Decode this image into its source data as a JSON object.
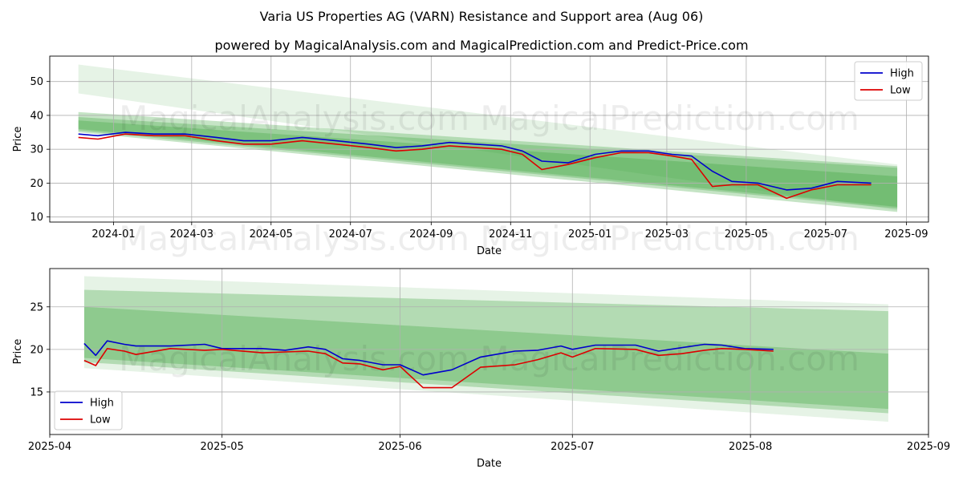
{
  "title": "Varia US Properties AG (VARN) Resistance and Support area (Aug 06)",
  "subtitle": "powered by MagicalAnalysis.com and MagicalPrediction.com and Predict-Price.com",
  "watermark": "MagicalAnalysis.com    MagicalPrediction.com",
  "colors": {
    "high": "#0000cc",
    "low": "#dd0000",
    "band": "#2e9e2e",
    "grid": "#b0b0b0"
  },
  "chart_data": [
    {
      "type": "line",
      "xlabel": "Date",
      "ylabel": "Price",
      "xlim": [
        "2023-11-13",
        "2025-09-18"
      ],
      "ylim": [
        8.5,
        57.5
      ],
      "xticks": [
        "2024-01",
        "2024-03",
        "2024-05",
        "2024-07",
        "2024-09",
        "2024-11",
        "2025-01",
        "2025-03",
        "2025-05",
        "2025-07",
        "2025-09"
      ],
      "yticks": [
        10,
        20,
        30,
        40,
        50
      ],
      "grid": true,
      "legend": "top-right",
      "series": [
        {
          "name": "High",
          "x": [
            "2023-12-05",
            "2023-12-20",
            "2024-01-10",
            "2024-02-01",
            "2024-02-25",
            "2024-03-20",
            "2024-04-10",
            "2024-05-01",
            "2024-05-25",
            "2024-06-20",
            "2024-07-15",
            "2024-08-05",
            "2024-08-25",
            "2024-09-15",
            "2024-10-05",
            "2024-10-25",
            "2024-11-10",
            "2024-11-25",
            "2024-12-15",
            "2025-01-05",
            "2025-01-25",
            "2025-02-15",
            "2025-03-05",
            "2025-03-20",
            "2025-04-05",
            "2025-04-20",
            "2025-05-10",
            "2025-06-01",
            "2025-06-20",
            "2025-07-10",
            "2025-08-05"
          ],
          "values": [
            34.5,
            34.0,
            35.0,
            34.5,
            34.5,
            33.5,
            32.5,
            32.5,
            33.5,
            32.5,
            31.5,
            30.5,
            31.0,
            32.0,
            31.5,
            31.0,
            29.5,
            26.5,
            26.0,
            28.5,
            29.5,
            29.5,
            28.5,
            28.0,
            23.5,
            20.5,
            20.0,
            18.0,
            18.5,
            20.5,
            20.0
          ]
        },
        {
          "name": "Low",
          "x": [
            "2023-12-05",
            "2023-12-20",
            "2024-01-10",
            "2024-02-01",
            "2024-02-25",
            "2024-03-20",
            "2024-04-10",
            "2024-05-01",
            "2024-05-25",
            "2024-06-20",
            "2024-07-15",
            "2024-08-05",
            "2024-08-25",
            "2024-09-15",
            "2024-10-05",
            "2024-10-25",
            "2024-11-10",
            "2024-11-25",
            "2024-12-15",
            "2025-01-05",
            "2025-01-25",
            "2025-02-15",
            "2025-03-05",
            "2025-03-20",
            "2025-04-05",
            "2025-04-20",
            "2025-05-10",
            "2025-06-01",
            "2025-06-20",
            "2025-07-10",
            "2025-08-05"
          ],
          "values": [
            33.5,
            33.0,
            34.5,
            34.0,
            34.0,
            32.5,
            31.5,
            31.5,
            32.5,
            31.5,
            30.5,
            29.5,
            30.0,
            31.0,
            30.5,
            30.0,
            28.5,
            24.0,
            25.5,
            27.5,
            29.0,
            29.0,
            28.0,
            27.0,
            19.0,
            19.5,
            19.5,
            15.5,
            18.0,
            19.5,
            19.5
          ]
        }
      ],
      "bands": [
        {
          "x": [
            "2023-12-05",
            "2025-08-25"
          ],
          "upper": [
            55.0,
            25.5
          ],
          "lower": [
            46.5,
            12.0
          ]
        },
        {
          "x": [
            "2023-12-05",
            "2025-08-25"
          ],
          "upper": [
            41.0,
            25.0
          ],
          "lower": [
            35.0,
            11.5
          ]
        },
        {
          "x": [
            "2023-12-05",
            "2025-08-25"
          ],
          "upper": [
            39.5,
            24.5
          ],
          "lower": [
            35.5,
            12.5
          ]
        },
        {
          "x": [
            "2023-12-05",
            "2025-08-25"
          ],
          "upper": [
            38.5,
            22.0
          ],
          "lower": [
            36.0,
            13.0
          ]
        }
      ]
    },
    {
      "type": "line",
      "xlabel": "Date",
      "ylabel": "Price",
      "xlim": [
        "2025-04-01",
        "2025-09-01"
      ],
      "ylim": [
        10.0,
        29.5
      ],
      "xticks": [
        "2025-04",
        "2025-05",
        "2025-06",
        "2025-07",
        "2025-08",
        "2025-09"
      ],
      "yticks": [
        15,
        20,
        25
      ],
      "grid": true,
      "legend": "bottom-left",
      "series": [
        {
          "name": "High",
          "x": [
            "2025-04-07",
            "2025-04-09",
            "2025-04-11",
            "2025-04-14",
            "2025-04-16",
            "2025-04-22",
            "2025-04-28",
            "2025-05-01",
            "2025-05-08",
            "2025-05-12",
            "2025-05-16",
            "2025-05-19",
            "2025-05-22",
            "2025-05-25",
            "2025-05-29",
            "2025-06-01",
            "2025-06-05",
            "2025-06-10",
            "2025-06-15",
            "2025-06-21",
            "2025-06-25",
            "2025-06-29",
            "2025-07-01",
            "2025-07-05",
            "2025-07-12",
            "2025-07-16",
            "2025-07-20",
            "2025-07-24",
            "2025-07-27",
            "2025-07-31",
            "2025-08-05"
          ],
          "values": [
            20.7,
            19.3,
            21.0,
            20.6,
            20.4,
            20.4,
            20.6,
            20.1,
            20.1,
            19.9,
            20.3,
            20.0,
            18.9,
            18.7,
            18.2,
            18.2,
            17.0,
            17.6,
            19.1,
            19.8,
            19.9,
            20.4,
            20.0,
            20.5,
            20.5,
            19.8,
            20.2,
            20.6,
            20.5,
            20.1,
            20.0
          ]
        },
        {
          "name": "Low",
          "x": [
            "2025-04-07",
            "2025-04-09",
            "2025-04-11",
            "2025-04-14",
            "2025-04-16",
            "2025-04-22",
            "2025-04-28",
            "2025-05-01",
            "2025-05-08",
            "2025-05-12",
            "2025-05-16",
            "2025-05-19",
            "2025-05-22",
            "2025-05-25",
            "2025-05-29",
            "2025-06-01",
            "2025-06-05",
            "2025-06-10",
            "2025-06-15",
            "2025-06-21",
            "2025-06-25",
            "2025-06-29",
            "2025-07-01",
            "2025-07-05",
            "2025-07-12",
            "2025-07-16",
            "2025-07-20",
            "2025-07-24",
            "2025-07-27",
            "2025-07-31",
            "2025-08-05"
          ],
          "values": [
            18.7,
            18.1,
            20.1,
            19.8,
            19.4,
            20.1,
            19.9,
            20.0,
            19.6,
            19.7,
            19.8,
            19.5,
            18.4,
            18.3,
            17.6,
            18.0,
            15.5,
            15.5,
            17.9,
            18.2,
            18.8,
            19.6,
            19.1,
            20.1,
            20.0,
            19.3,
            19.5,
            19.9,
            20.1,
            20.0,
            19.8
          ]
        }
      ],
      "bands": [
        {
          "x": [
            "2025-04-07",
            "2025-08-25"
          ],
          "upper": [
            28.6,
            25.3
          ],
          "lower": [
            17.8,
            11.5
          ]
        },
        {
          "x": [
            "2025-04-07",
            "2025-08-25"
          ],
          "upper": [
            27.0,
            24.5
          ],
          "lower": [
            18.5,
            12.5
          ]
        },
        {
          "x": [
            "2025-04-07",
            "2025-08-25"
          ],
          "upper": [
            25.0,
            19.5
          ],
          "lower": [
            19.0,
            13.0
          ]
        }
      ]
    }
  ]
}
